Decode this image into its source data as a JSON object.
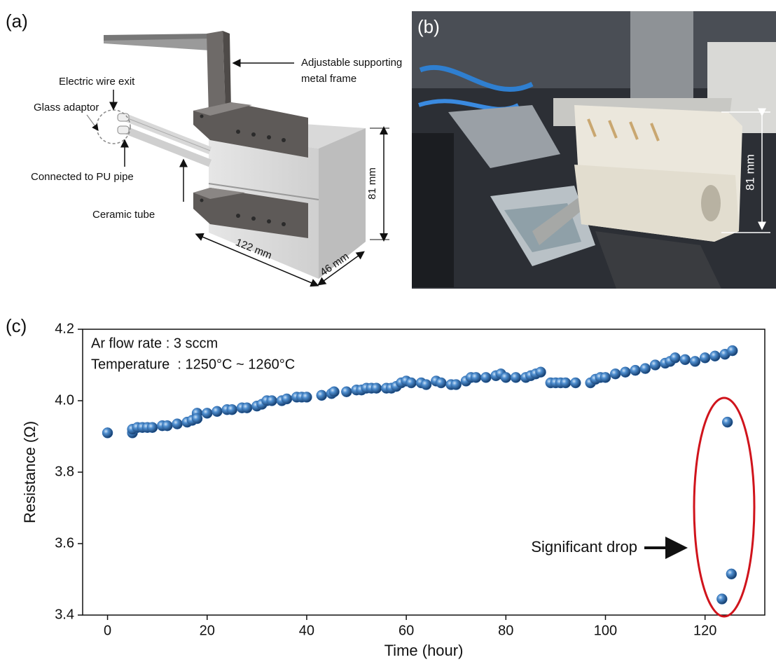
{
  "panel_a": {
    "label": "(a)",
    "annotations": [
      "Adjustable supporting",
      "metal frame",
      "Electric wire exit",
      "Glass adaptor",
      "Connected to PU pipe",
      "Ceramic tube"
    ],
    "dimensions": [
      "81 mm",
      "122 mm",
      "46 mm"
    ]
  },
  "panel_b": {
    "label": "(b)",
    "dimension": "81 mm"
  },
  "chart_data": {
    "type": "scatter",
    "label": "(c)",
    "x_label": "Time (hour)",
    "y_label": "Resistance (Ω)",
    "annotations": [
      "Ar flow rate : 3 sccm",
      "Temperature  : 1250°C ~ 1260°C",
      "Significant drop"
    ],
    "color": "#2f6db3",
    "xlim": [
      -5,
      132
    ],
    "ylim": [
      3.4,
      4.2
    ],
    "xticks": [
      0,
      20,
      40,
      60,
      80,
      100,
      120
    ],
    "yticks": [
      3.4,
      3.6,
      3.8,
      {
        "value": 4,
        "label": "4.0"
      },
      4.2
    ],
    "x": [
      0,
      5,
      5,
      6,
      7,
      8,
      9,
      11,
      12,
      14,
      16,
      17,
      18,
      18,
      20,
      22,
      24,
      25,
      27,
      28,
      30,
      31,
      32,
      33,
      35,
      36,
      38,
      39,
      40,
      43,
      45,
      45.5,
      48,
      50,
      51,
      52,
      53,
      54,
      56,
      57,
      58,
      59,
      60,
      61,
      63,
      64,
      66,
      67,
      69,
      70,
      72,
      73,
      74,
      76,
      78,
      79,
      80,
      82,
      84,
      85,
      86,
      87,
      89,
      90,
      91,
      92,
      94,
      97,
      98,
      99,
      100,
      102,
      104,
      106,
      108,
      110,
      112,
      113,
      114,
      116,
      118,
      120,
      122,
      124,
      125.5,
      124.5,
      125.3,
      123.4
    ],
    "values": [
      3.91,
      3.91,
      3.92,
      3.925,
      3.925,
      3.925,
      3.925,
      3.93,
      3.93,
      3.935,
      3.94,
      3.945,
      3.965,
      3.95,
      3.965,
      3.97,
      3.975,
      3.975,
      3.98,
      3.98,
      3.985,
      3.99,
      4.0,
      4.0,
      4.0,
      4.005,
      4.01,
      4.01,
      4.01,
      4.015,
      4.02,
      4.025,
      4.025,
      4.03,
      4.03,
      4.035,
      4.035,
      4.035,
      4.035,
      4.035,
      4.04,
      4.05,
      4.055,
      4.05,
      4.05,
      4.045,
      4.055,
      4.05,
      4.045,
      4.045,
      4.055,
      4.065,
      4.065,
      4.065,
      4.07,
      4.075,
      4.065,
      4.065,
      4.065,
      4.07,
      4.075,
      4.08,
      4.05,
      4.05,
      4.05,
      4.05,
      4.05,
      4.05,
      4.06,
      4.065,
      4.065,
      4.075,
      4.08,
      4.085,
      4.09,
      4.1,
      4.105,
      4.11,
      4.12,
      4.115,
      4.11,
      4.12,
      4.125,
      4.13,
      4.14,
      3.94,
      3.515,
      3.445
    ]
  }
}
